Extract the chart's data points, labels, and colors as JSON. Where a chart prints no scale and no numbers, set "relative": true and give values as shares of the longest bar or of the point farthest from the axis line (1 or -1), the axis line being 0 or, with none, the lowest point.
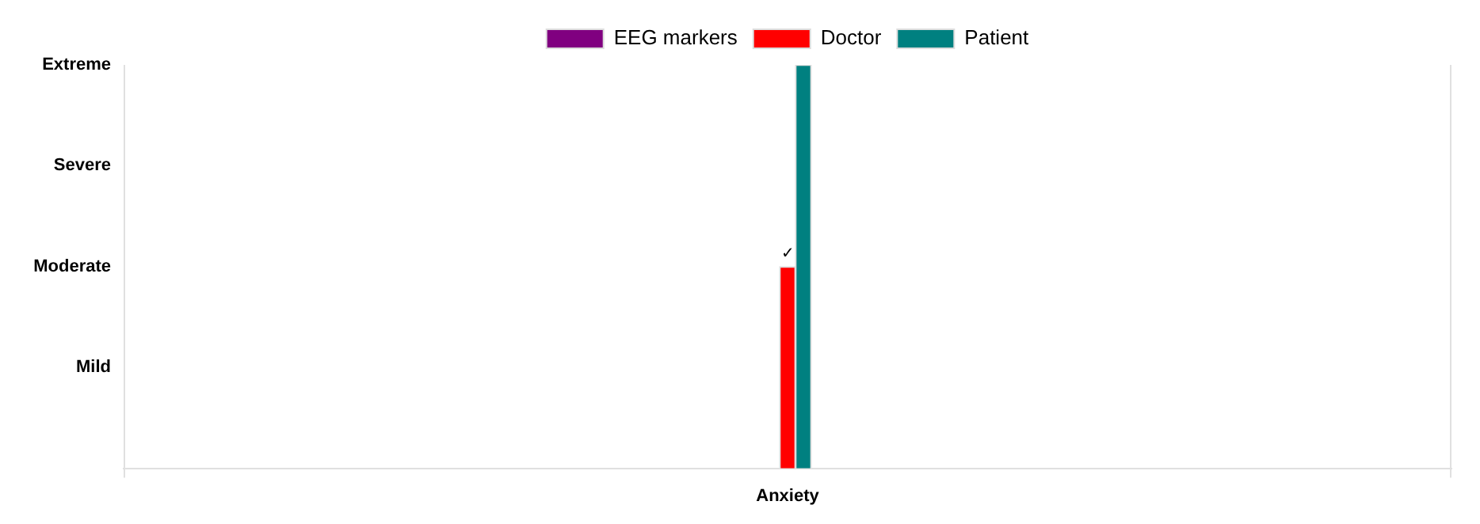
{
  "chart_data": {
    "type": "bar",
    "categories": [
      "Anxiety"
    ],
    "series": [
      {
        "name": "EEG markers",
        "color": "#800080",
        "values": [
          null
        ]
      },
      {
        "name": "Doctor",
        "color": "#ff0000",
        "values": [
          0.5
        ]
      },
      {
        "name": "Patient",
        "color": "#008080",
        "values": [
          1
        ]
      }
    ],
    "relative": true,
    "legend": "top",
    "annotations": [
      "Extreme",
      "Severe",
      "Moderate",
      "Mild",
      {
        "text": "✓",
        "x": "Anxiety",
        "y": 0.5
      }
    ]
  }
}
